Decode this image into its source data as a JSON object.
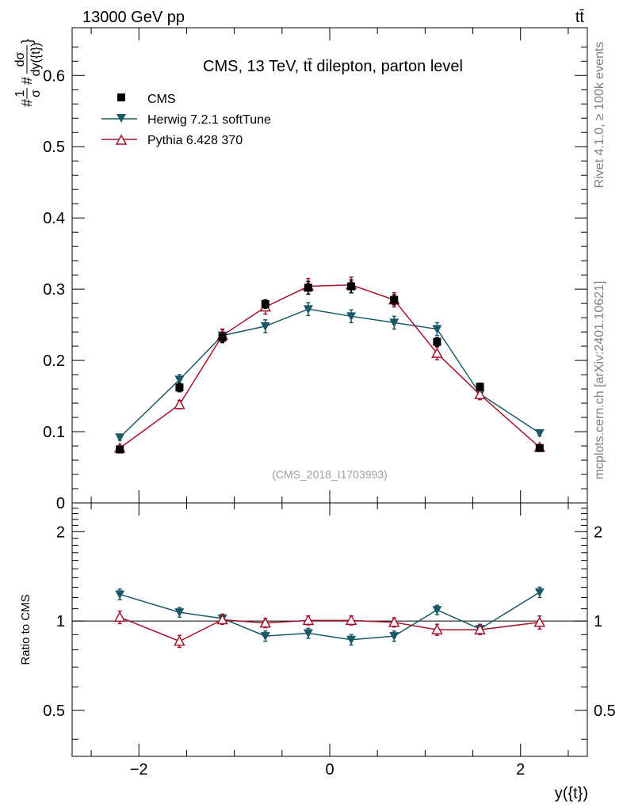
{
  "header": {
    "left": "13000 GeV pp",
    "right": "tt̄"
  },
  "side": {
    "rivet": "Rivet 4.1.0, ≥ 100k events",
    "mcplots": "mcplots.cern.ch [arXiv:2401.10621]"
  },
  "colors": {
    "cms": "#000000",
    "herwig": "#1a5868",
    "pythia": "#a3142c"
  },
  "chart_data": [
    {
      "type": "scatter",
      "panel": "main",
      "title": "CMS, 13 TeV, tt̄ dilepton, parton level",
      "watermark": "(CMS_2018_I1703993)",
      "ylabel": "#frac{1}{#sigma}#frac{dσ}{dy({t})}",
      "ylabel_parts": {
        "prefix": "#",
        "one": "1",
        "sigma": "σ",
        "mid": "#",
        "dsigma": "dσ",
        "dy": "dy({t})",
        "suffix": "}"
      },
      "xlim": [
        -2.7,
        2.7
      ],
      "ylim": [
        0,
        0.667
      ],
      "yticks": [
        0,
        0.1,
        0.2,
        0.3,
        0.4,
        0.5,
        0.6
      ],
      "ytick_labels": [
        "0",
        "0.1",
        "0.2",
        "0.3",
        "0.4",
        "0.5",
        "0.6"
      ],
      "legend_position": "top-left",
      "x": [
        -2.2,
        -1.575,
        -1.125,
        -0.675,
        -0.225,
        0.225,
        0.675,
        1.125,
        1.575,
        2.2
      ],
      "series": [
        {
          "name": "CMS",
          "marker": "square",
          "color": "#000000",
          "values": [
            0.075,
            0.162,
            0.232,
            0.279,
            0.302,
            0.304,
            0.285,
            0.226,
            0.163,
            0.077
          ],
          "errors": [
            0.004,
            0.006,
            0.007,
            0.006,
            0.009,
            0.009,
            0.007,
            0.006,
            0.005,
            0.004
          ]
        },
        {
          "name": "Herwig 7.2.1 softTune",
          "marker": "triangle-down",
          "color": "#1a5868",
          "values": [
            0.092,
            0.173,
            0.235,
            0.248,
            0.272,
            0.262,
            0.253,
            0.244,
            0.153,
            0.098
          ],
          "errors": [
            0.004,
            0.007,
            0.008,
            0.009,
            0.009,
            0.009,
            0.009,
            0.009,
            0.007,
            0.004
          ]
        },
        {
          "name": "Pythia 6.428 370",
          "marker": "triangle-up-open",
          "color": "#a3142c",
          "values": [
            0.077,
            0.138,
            0.235,
            0.275,
            0.304,
            0.306,
            0.285,
            0.21,
            0.152,
            0.078
          ],
          "errors": [
            0.004,
            0.006,
            0.009,
            0.01,
            0.011,
            0.011,
            0.01,
            0.009,
            0.007,
            0.004
          ]
        }
      ]
    },
    {
      "type": "scatter",
      "panel": "ratio",
      "ylabel": "Ratio to CMS",
      "xlabel": "y({t})",
      "xlim": [
        -2.7,
        2.7
      ],
      "ylim": [
        0.35,
        2.5
      ],
      "yticks": [
        0.5,
        1,
        2
      ],
      "ytick_labels": [
        "0.5",
        "1",
        "2"
      ],
      "xticks": [
        -2,
        0,
        2
      ],
      "xtick_labels": [
        "−2",
        "0",
        "2"
      ],
      "x": [
        -2.2,
        -1.575,
        -1.125,
        -0.675,
        -0.225,
        0.225,
        0.675,
        1.125,
        1.575,
        2.2
      ],
      "reference": 1,
      "series": [
        {
          "name": "Herwig 7.2.1 softTune",
          "marker": "triangle-down",
          "color": "#1a5868",
          "values": [
            1.23,
            1.07,
            1.02,
            0.89,
            0.91,
            0.865,
            0.89,
            1.09,
            0.94,
            1.25
          ],
          "errors": [
            0.05,
            0.04,
            0.035,
            0.035,
            0.035,
            0.035,
            0.035,
            0.04,
            0.035,
            0.05
          ]
        },
        {
          "name": "Pythia 6.428 370",
          "marker": "triangle-up-open",
          "color": "#a3142c",
          "values": [
            1.03,
            0.855,
            1.01,
            0.985,
            1.005,
            1.005,
            0.99,
            0.935,
            0.935,
            0.99
          ],
          "errors": [
            0.05,
            0.04,
            0.035,
            0.035,
            0.035,
            0.035,
            0.035,
            0.04,
            0.035,
            0.05
          ]
        }
      ]
    }
  ]
}
